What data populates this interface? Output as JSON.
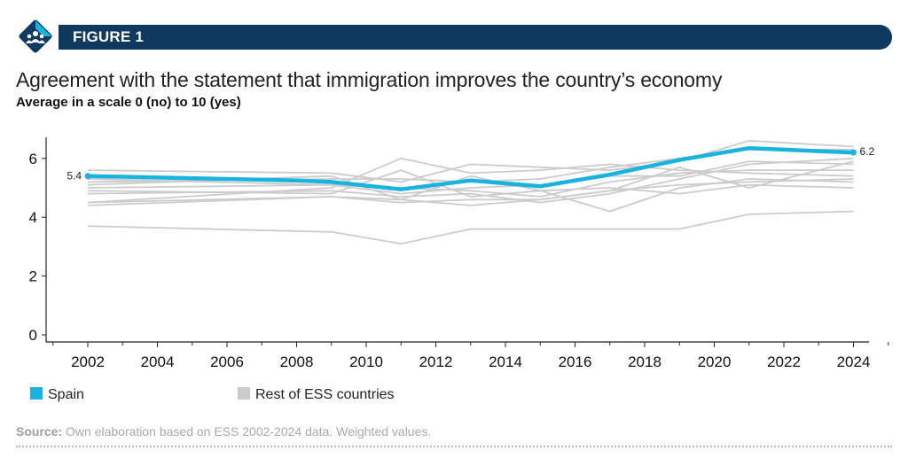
{
  "figure": {
    "label": "FIGURE 1",
    "badge_icon": "people-group-icon",
    "banner_color": "#0e3a5f",
    "accent_color": "#1ab3e0"
  },
  "title": "Agreement with the statement that immigration improves the country’s economy",
  "subtitle": "Average in a scale 0 (no) to 10 (yes)",
  "source": {
    "prefix": "Source:",
    "text": " Own elaboration based on ESS 2002-2024 data. Weighted values."
  },
  "chart_data": {
    "type": "line",
    "x_ticks": [
      2002,
      2004,
      2006,
      2008,
      2010,
      2012,
      2014,
      2016,
      2018,
      2020,
      2022,
      2024
    ],
    "y_ticks": [
      0,
      2,
      4,
      6
    ],
    "xlim": [
      2001,
      2025
    ],
    "ylim": [
      0,
      7
    ],
    "grid": false,
    "legend_position": "bottom-left",
    "series": [
      {
        "name": "Spain",
        "color": "#1ab3e0",
        "highlight": true,
        "x": [
          2002,
          2004,
          2006,
          2008,
          2009,
          2011,
          2013,
          2015,
          2017,
          2019,
          2021,
          2024
        ],
        "values": [
          5.4,
          5.35,
          5.3,
          5.25,
          5.2,
          4.95,
          5.25,
          5.05,
          5.45,
          5.95,
          6.35,
          6.2
        ],
        "start_label": "5.4",
        "end_label": "6.2"
      },
      {
        "name": "Rest of ESS countries",
        "color": "#cccccc",
        "highlight": false,
        "lines": [
          {
            "x": [
              2002,
              2009,
              2011,
              2013,
              2015,
              2017,
              2019,
              2021,
              2024
            ],
            "values": [
              3.7,
              3.5,
              3.1,
              3.6,
              3.6,
              3.6,
              3.6,
              4.1,
              4.2
            ]
          },
          {
            "x": [
              2002,
              2009,
              2011,
              2013,
              2015,
              2017,
              2019,
              2021,
              2024
            ],
            "values": [
              4.5,
              4.7,
              4.6,
              4.4,
              4.6,
              4.9,
              5.1,
              5.2,
              5.3
            ]
          },
          {
            "x": [
              2002,
              2009,
              2011,
              2013,
              2015,
              2017,
              2019,
              2021,
              2024
            ],
            "values": [
              4.8,
              4.9,
              4.7,
              4.8,
              4.5,
              4.8,
              5.3,
              5.8,
              6.0
            ]
          },
          {
            "x": [
              2002,
              2009,
              2011,
              2013,
              2015,
              2017,
              2019,
              2021,
              2024
            ],
            "values": [
              5.0,
              5.1,
              5.0,
              4.9,
              4.7,
              5.2,
              5.5,
              5.6,
              5.6
            ]
          },
          {
            "x": [
              2002,
              2009,
              2011,
              2013,
              2015,
              2017,
              2019,
              2021,
              2024
            ],
            "values": [
              5.2,
              5.3,
              5.3,
              5.2,
              5.3,
              5.7,
              6.0,
              6.3,
              6.3
            ]
          },
          {
            "x": [
              2002,
              2009,
              2011,
              2013,
              2015,
              2017,
              2019,
              2021,
              2024
            ],
            "values": [
              5.6,
              5.5,
              5.2,
              5.8,
              5.7,
              5.6,
              5.9,
              6.6,
              6.4
            ]
          },
          {
            "x": [
              2002,
              2009,
              2011,
              2013,
              2015,
              2017,
              2019,
              2021,
              2024
            ],
            "values": [
              4.5,
              5.0,
              6.0,
              5.5,
              5.6,
              5.8,
              5.6,
              5.5,
              5.4
            ]
          },
          {
            "x": [
              2002,
              2009,
              2011,
              2013,
              2015,
              2017,
              2019,
              2021,
              2024
            ],
            "values": [
              5.1,
              5.4,
              4.6,
              5.4,
              4.9,
              4.2,
              5.0,
              5.3,
              5.2
            ]
          },
          {
            "x": [
              2002,
              2009,
              2011,
              2013,
              2015,
              2017,
              2019,
              2021,
              2024
            ],
            "values": [
              4.4,
              4.7,
              4.5,
              4.6,
              4.6,
              4.9,
              5.7,
              5.0,
              5.9
            ]
          },
          {
            "x": [
              2002,
              2009,
              2011,
              2013,
              2015,
              2017,
              2019,
              2021,
              2024
            ],
            "values": [
              5.3,
              5.1,
              4.8,
              5.0,
              5.1,
              5.4,
              5.4,
              5.9,
              5.8
            ]
          },
          {
            "x": [
              2002,
              2009,
              2011,
              2013,
              2015,
              2017,
              2019,
              2021,
              2024
            ],
            "values": [
              4.9,
              4.8,
              5.6,
              4.7,
              4.9,
              5.0,
              4.8,
              5.1,
              5.0
            ]
          }
        ]
      }
    ],
    "legend": [
      {
        "label": "Spain",
        "color": "#1ab3e0"
      },
      {
        "label": "Rest of ESS countries",
        "color": "#cccccc"
      }
    ]
  }
}
